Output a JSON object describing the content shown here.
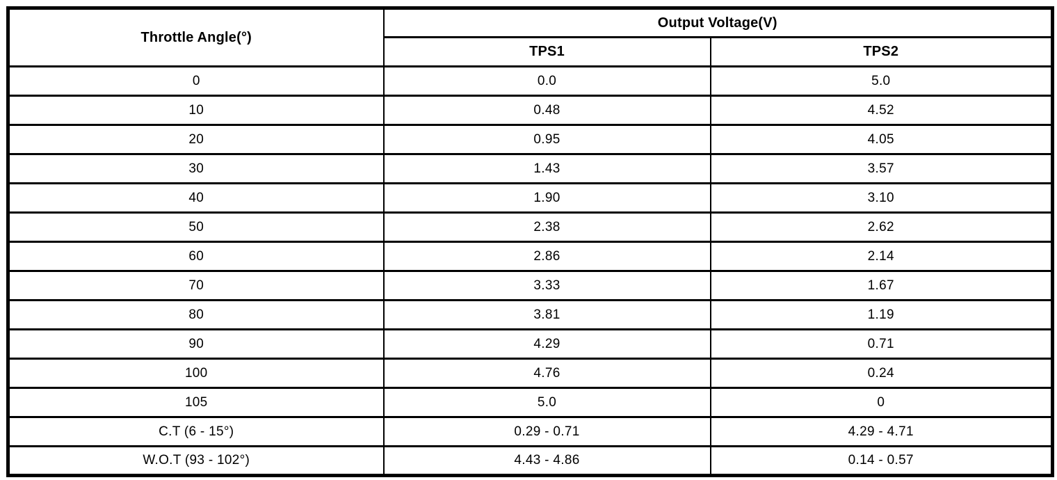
{
  "table": {
    "title_column_header": "Throttle Angle(°)",
    "group_header": "Output Voltage(V)",
    "sub_headers": {
      "tps1": "TPS1",
      "tps2": "TPS2"
    },
    "rows": [
      {
        "angle": "0",
        "tps1": "0.0",
        "tps2": "5.0"
      },
      {
        "angle": "10",
        "tps1": "0.48",
        "tps2": "4.52"
      },
      {
        "angle": "20",
        "tps1": "0.95",
        "tps2": "4.05"
      },
      {
        "angle": "30",
        "tps1": "1.43",
        "tps2": "3.57"
      },
      {
        "angle": "40",
        "tps1": "1.90",
        "tps2": "3.10"
      },
      {
        "angle": "50",
        "tps1": "2.38",
        "tps2": "2.62"
      },
      {
        "angle": "60",
        "tps1": "2.86",
        "tps2": "2.14"
      },
      {
        "angle": "70",
        "tps1": "3.33",
        "tps2": "1.67"
      },
      {
        "angle": "80",
        "tps1": "3.81",
        "tps2": "1.19"
      },
      {
        "angle": "90",
        "tps1": "4.29",
        "tps2": "0.71"
      },
      {
        "angle": "100",
        "tps1": "4.76",
        "tps2": "0.24"
      },
      {
        "angle": "105",
        "tps1": "5.0",
        "tps2": "0"
      },
      {
        "angle": "C.T (6 - 15°)",
        "tps1": "0.29 - 0.71",
        "tps2": "4.29 - 4.71"
      },
      {
        "angle": "W.O.T (93 - 102°)",
        "tps1": "4.43 - 4.86",
        "tps2": "0.14 - 0.57"
      }
    ]
  },
  "colors": {
    "border": "#000000",
    "background": "#ffffff",
    "text": "#000000"
  }
}
